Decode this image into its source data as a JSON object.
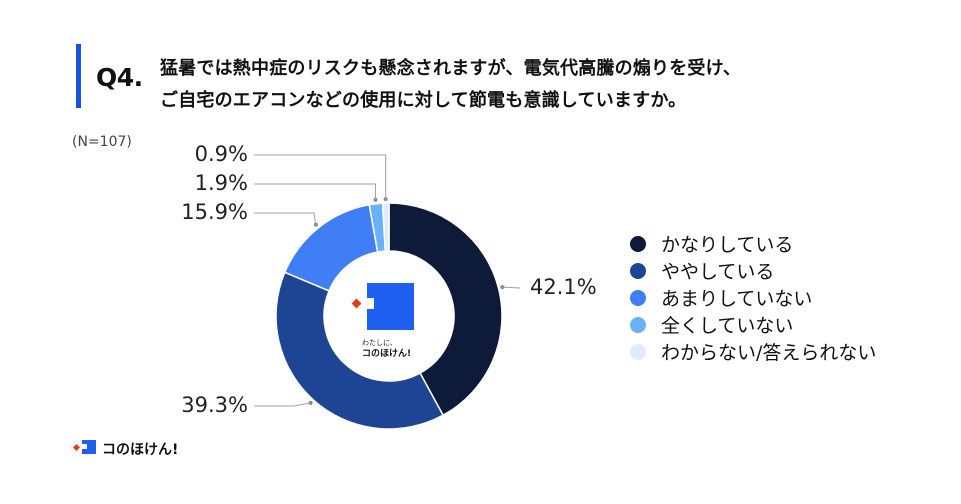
{
  "header": {
    "question_number": "Q4.",
    "question_line1": "猛暑では熱中症のリスクも懸念されますが、電気代高騰の煽りを受け、",
    "question_line2": "ご自宅のエアコンなどの使用に対して節電も意識していますか。",
    "accent_color": "#1a52e0"
  },
  "sample_size": "(N=107)",
  "logo": {
    "center_tagline": "わたしに、",
    "center_name": "コのほけん!",
    "footer_name": "コのほけん!"
  },
  "chart_data": {
    "type": "pie",
    "variant": "donut",
    "start_angle": "top, clockwise",
    "categories": [
      "かなりしている",
      "ややしている",
      "あまりしていない",
      "全くしていない",
      "わからない/答えられない"
    ],
    "values": [
      42.1,
      39.3,
      15.9,
      1.9,
      0.9
    ],
    "value_labels": [
      "42.1%",
      "39.3%",
      "15.9%",
      "1.9%",
      "0.9%"
    ],
    "colors": [
      "#0d1a3a",
      "#1e4494",
      "#3f7ef5",
      "#6ab2f8",
      "#e0ecfd"
    ],
    "legend_placement": "right"
  }
}
